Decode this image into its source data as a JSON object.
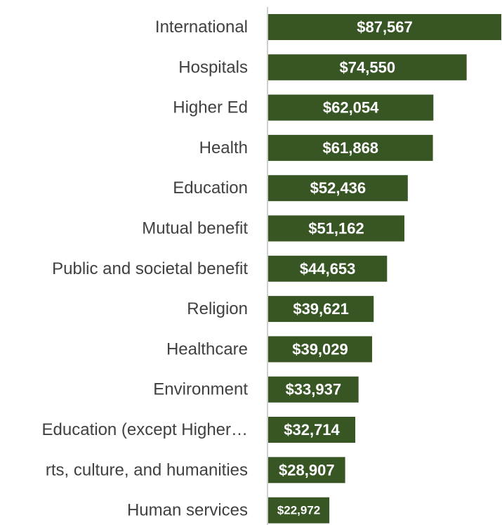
{
  "chart_data": {
    "type": "bar",
    "orientation": "horizontal",
    "title": "",
    "xlabel": "",
    "ylabel": "",
    "categories": [
      "International",
      "Hospitals",
      "Higher Ed",
      "Health",
      "Education",
      "Mutual benefit",
      "Public and societal benefit",
      "Religion",
      "Healthcare",
      "Environment",
      "Education (except Higher…",
      "rts, culture, and humanities",
      "Human services"
    ],
    "values": [
      87567,
      74550,
      62054,
      61868,
      52436,
      51162,
      44653,
      39621,
      39029,
      33937,
      32714,
      28907,
      22972
    ],
    "value_labels": [
      "$87,567",
      "$74,550",
      "$62,054",
      "$61,868",
      "$52,436",
      "$51,162",
      "$44,653",
      "$39,621",
      "$39,029",
      "$33,937",
      "$32,714",
      "$28,907",
      "$22,972"
    ],
    "xlim": [
      0,
      87567
    ],
    "grid": false,
    "legend": "none",
    "colors": {
      "bar": "#375623",
      "axis": "#bfbfbf",
      "category_text": "#404040",
      "value_text": "#ffffff"
    }
  }
}
